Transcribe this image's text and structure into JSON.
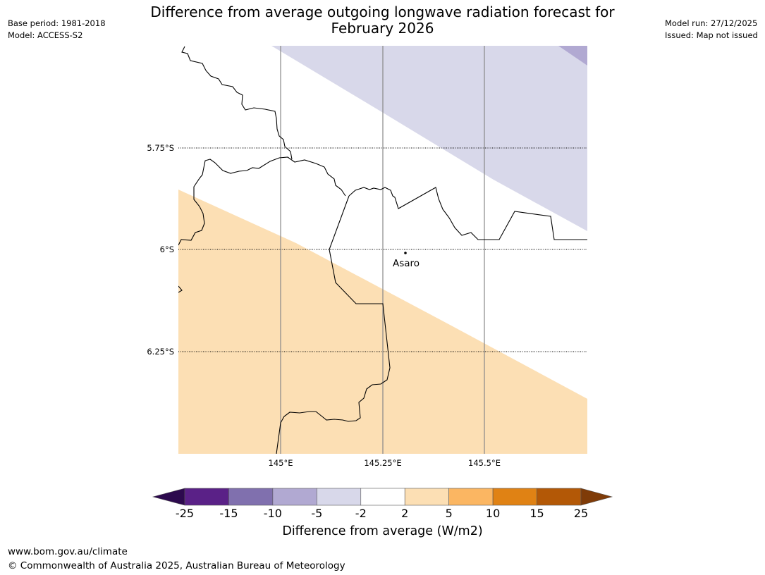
{
  "header": {
    "title_line1": "Difference from average outgoing longwave radiation forecast for",
    "title_line2": "February 2026",
    "base_period": "Base period: 1981-2018",
    "model": "Model: ACCESS-S2",
    "model_run": "Model run: 27/12/2025",
    "issued": "Issued: Map not issued"
  },
  "map": {
    "region": "Asaro area, Papua New Guinea",
    "lat_labels": [
      "5.75°S",
      "6°S",
      "6.25°S"
    ],
    "lon_labels": [
      "145°E",
      "145.25°E",
      "145.5°E"
    ],
    "place": {
      "name": "Asaro",
      "lat": -6.01,
      "lon": 145.29
    },
    "shading": [
      {
        "category": "-5 to -2",
        "color": "#d8d8ea"
      },
      {
        "category": "-10 to -5",
        "color": "#b1a9d2"
      },
      {
        "category": "2 to 5",
        "color": "#fcdfb4"
      }
    ]
  },
  "colorbar": {
    "title": "Difference from average (W/m2)",
    "ticks": [
      "-25",
      "-15",
      "-10",
      "-5",
      "-2",
      "2",
      "5",
      "10",
      "15",
      "25"
    ],
    "colors": {
      "under": "#2d0a4e",
      "bins": [
        "#5a2187",
        "#8070ae",
        "#b1a9d2",
        "#d8d8ea",
        "#ffffff",
        "#fcdfb4",
        "#fbb662",
        "#e08214",
        "#b35806"
      ],
      "over": "#7f3b08"
    }
  },
  "footer": {
    "url": "www.bom.gov.au/climate",
    "copyright": "© Commonwealth of Australia 2025, Australian Bureau of Meteorology"
  }
}
